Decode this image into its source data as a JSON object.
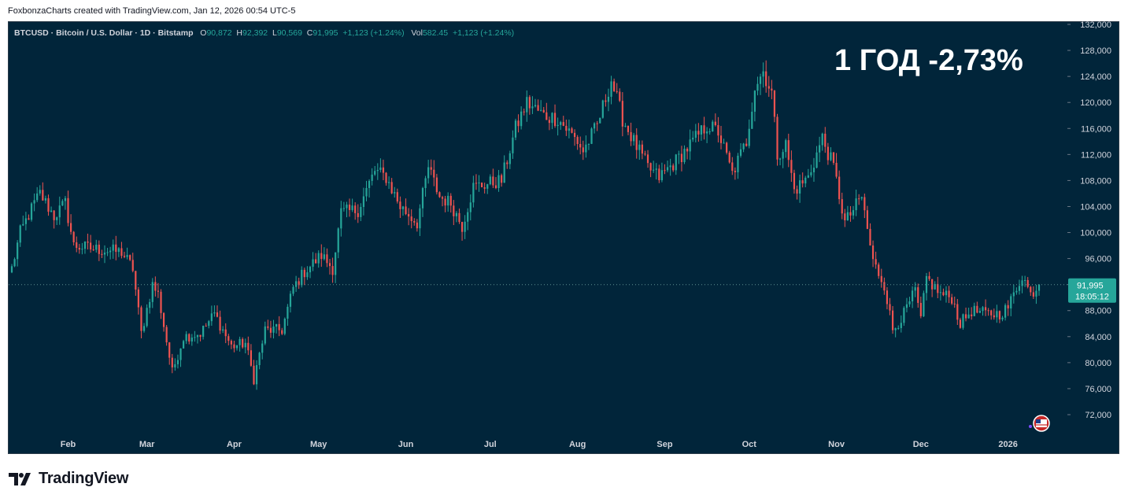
{
  "header": {
    "note": "FoxbonzaCharts created with TradingView.com, Jan 12, 2026 00:54 UTC-5"
  },
  "legend": {
    "symbol": "BTCUSD · Bitcoin / U.S. Dollar · 1D · Bitstamp",
    "o_label": "O",
    "o_value": "90,872",
    "h_label": "H",
    "h_value": "92,392",
    "l_label": "L",
    "l_value": "90,569",
    "c_label": "C",
    "c_value": "91,995",
    "change": "+1,123 (+1.24%)",
    "vol_label": "Vol",
    "vol_value": "582.45",
    "vol_change": "+1,123 (+1.24%)"
  },
  "annotation": "1 ГОД -2,73%",
  "price_tag": {
    "price": "91,995",
    "countdown": "18:05:12"
  },
  "footer": {
    "brand": "TradingView"
  },
  "colors": {
    "background": "#01253a",
    "up": "#26a69a",
    "down": "#ef5350",
    "text": "#d1d4dc",
    "tag": "#26a69a"
  },
  "chart_data": {
    "type": "candlestick",
    "ylim": [
      68000,
      132000
    ],
    "y_ticks": [
      {
        "value": 72000,
        "label": "72,000"
      },
      {
        "value": 76000,
        "label": "76,000"
      },
      {
        "value": 80000,
        "label": "80,000"
      },
      {
        "value": 84000,
        "label": "84,000"
      },
      {
        "value": 88000,
        "label": "88,000"
      },
      {
        "value": 92000,
        "label": "92,000"
      },
      {
        "value": 96000,
        "label": "96,000"
      },
      {
        "value": 100000,
        "label": "100,000"
      },
      {
        "value": 104000,
        "label": "104,000"
      },
      {
        "value": 108000,
        "label": "108,000"
      },
      {
        "value": 112000,
        "label": "112,000"
      },
      {
        "value": 116000,
        "label": "116,000"
      },
      {
        "value": 120000,
        "label": "120,000"
      },
      {
        "value": 124000,
        "label": "124,000"
      },
      {
        "value": 128000,
        "label": "128,000"
      },
      {
        "value": 132000,
        "label": "132,000"
      }
    ],
    "x_ticks": [
      {
        "label": "Feb",
        "date": "2025-02-01"
      },
      {
        "label": "Mar",
        "date": "2025-03-01"
      },
      {
        "label": "Apr",
        "date": "2025-04-01"
      },
      {
        "label": "May",
        "date": "2025-05-01"
      },
      {
        "label": "Jun",
        "date": "2025-06-01"
      },
      {
        "label": "Jul",
        "date": "2025-07-01"
      },
      {
        "label": "Aug",
        "date": "2025-08-01"
      },
      {
        "label": "Sep",
        "date": "2025-09-01"
      },
      {
        "label": "Oct",
        "date": "2025-10-01"
      },
      {
        "label": "Nov",
        "date": "2025-11-01"
      },
      {
        "label": "Dec",
        "date": "2025-12-01"
      },
      {
        "label": "2026",
        "date": "2026-01-01"
      }
    ],
    "last_price": 91995,
    "close_series": {
      "start_date": "2025-01-12",
      "interval": "1D",
      "anchors": [
        {
          "date": "2025-01-12",
          "close": 94500
        },
        {
          "date": "2025-01-15",
          "close": 100000
        },
        {
          "date": "2025-01-20",
          "close": 104500
        },
        {
          "date": "2025-01-22",
          "close": 106000
        },
        {
          "date": "2025-01-27",
          "close": 102500
        },
        {
          "date": "2025-01-31",
          "close": 104500
        },
        {
          "date": "2025-02-03",
          "close": 98000
        },
        {
          "date": "2025-02-10",
          "close": 97500
        },
        {
          "date": "2025-02-20",
          "close": 97000
        },
        {
          "date": "2025-02-24",
          "close": 94500
        },
        {
          "date": "2025-02-27",
          "close": 84500
        },
        {
          "date": "2025-03-03",
          "close": 92000
        },
        {
          "date": "2025-03-05",
          "close": 90500
        },
        {
          "date": "2025-03-10",
          "close": 78500
        },
        {
          "date": "2025-03-14",
          "close": 84000
        },
        {
          "date": "2025-03-20",
          "close": 84500
        },
        {
          "date": "2025-03-25",
          "close": 87500
        },
        {
          "date": "2025-03-31",
          "close": 82500
        },
        {
          "date": "2025-04-05",
          "close": 83000
        },
        {
          "date": "2025-04-08",
          "close": 77500
        },
        {
          "date": "2025-04-12",
          "close": 85000
        },
        {
          "date": "2025-04-18",
          "close": 85000
        },
        {
          "date": "2025-04-22",
          "close": 91500
        },
        {
          "date": "2025-04-26",
          "close": 94000
        },
        {
          "date": "2025-05-02",
          "close": 96500
        },
        {
          "date": "2025-05-06",
          "close": 94500
        },
        {
          "date": "2025-05-09",
          "close": 103000
        },
        {
          "date": "2025-05-15",
          "close": 103500
        },
        {
          "date": "2025-05-21",
          "close": 109500
        },
        {
          "date": "2025-05-25",
          "close": 108500
        },
        {
          "date": "2025-05-30",
          "close": 104000
        },
        {
          "date": "2025-06-05",
          "close": 101500
        },
        {
          "date": "2025-06-09",
          "close": 110000
        },
        {
          "date": "2025-06-13",
          "close": 105500
        },
        {
          "date": "2025-06-17",
          "close": 104500
        },
        {
          "date": "2025-06-21",
          "close": 101000
        },
        {
          "date": "2025-06-25",
          "close": 107000
        },
        {
          "date": "2025-06-30",
          "close": 107500
        },
        {
          "date": "2025-07-05",
          "close": 108000
        },
        {
          "date": "2025-07-10",
          "close": 116000
        },
        {
          "date": "2025-07-14",
          "close": 120000
        },
        {
          "date": "2025-07-20",
          "close": 118000
        },
        {
          "date": "2025-07-25",
          "close": 117500
        },
        {
          "date": "2025-08-01",
          "close": 114000
        },
        {
          "date": "2025-08-03",
          "close": 112500
        },
        {
          "date": "2025-08-08",
          "close": 116500
        },
        {
          "date": "2025-08-13",
          "close": 123500
        },
        {
          "date": "2025-08-17",
          "close": 117500
        },
        {
          "date": "2025-08-21",
          "close": 114000
        },
        {
          "date": "2025-08-26",
          "close": 110000
        },
        {
          "date": "2025-08-30",
          "close": 108500
        },
        {
          "date": "2025-09-05",
          "close": 111000
        },
        {
          "date": "2025-09-10",
          "close": 113500
        },
        {
          "date": "2025-09-16",
          "close": 116500
        },
        {
          "date": "2025-09-20",
          "close": 115500
        },
        {
          "date": "2025-09-25",
          "close": 109000
        },
        {
          "date": "2025-09-30",
          "close": 114000
        },
        {
          "date": "2025-10-03",
          "close": 122500
        },
        {
          "date": "2025-10-06",
          "close": 124800
        },
        {
          "date": "2025-10-09",
          "close": 121500
        },
        {
          "date": "2025-10-11",
          "close": 112000
        },
        {
          "date": "2025-10-14",
          "close": 113500
        },
        {
          "date": "2025-10-17",
          "close": 106500
        },
        {
          "date": "2025-10-22",
          "close": 108500
        },
        {
          "date": "2025-10-27",
          "close": 114500
        },
        {
          "date": "2025-10-31",
          "close": 110000
        },
        {
          "date": "2025-11-04",
          "close": 101500
        },
        {
          "date": "2025-11-10",
          "close": 105500
        },
        {
          "date": "2025-11-14",
          "close": 95500
        },
        {
          "date": "2025-11-18",
          "close": 92000
        },
        {
          "date": "2025-11-21",
          "close": 85000
        },
        {
          "date": "2025-11-25",
          "close": 87500
        },
        {
          "date": "2025-11-29",
          "close": 91000
        },
        {
          "date": "2025-12-01",
          "close": 86500
        },
        {
          "date": "2025-12-03",
          "close": 93000
        },
        {
          "date": "2025-12-08",
          "close": 90500
        },
        {
          "date": "2025-12-12",
          "close": 90000
        },
        {
          "date": "2025-12-15",
          "close": 86000
        },
        {
          "date": "2025-12-19",
          "close": 88000
        },
        {
          "date": "2025-12-24",
          "close": 87500
        },
        {
          "date": "2025-12-29",
          "close": 87500
        },
        {
          "date": "2026-01-01",
          "close": 88500
        },
        {
          "date": "2026-01-04",
          "close": 91500
        },
        {
          "date": "2026-01-06",
          "close": 93500
        },
        {
          "date": "2026-01-09",
          "close": 90500
        },
        {
          "date": "2026-01-12",
          "close": 91995
        }
      ]
    }
  }
}
